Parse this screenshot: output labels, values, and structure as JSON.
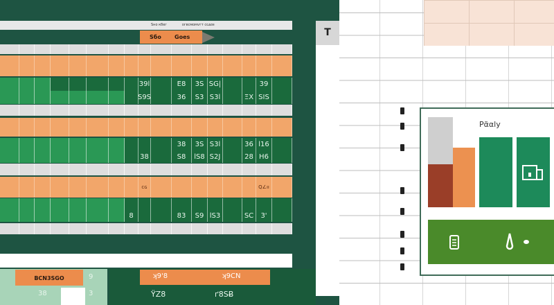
{
  "header": {
    "bar_labels": [
      "Sнo кбег",
      "ᴅгвсмомѵгт ᴄɢᴀᴅᴇ"
    ],
    "tab_labels": [
      "Sбo",
      "Goes"
    ],
    "side_button": "T"
  },
  "colors": {
    "panel": "#1e5442",
    "orange": "#f2a66a",
    "green": "#1a6a3c",
    "light_green": "#2a9855",
    "accent": "#ec8c4c"
  },
  "grid": {
    "rows": [
      {
        "type": "gray"
      },
      {
        "type": "orange"
      },
      {
        "type": "green",
        "values": {
          "9": "39l",
          "11": "E8",
          "12": "3S",
          "13": "SG|",
          "16": "39"
        }
      },
      {
        "type": "green",
        "values": {
          "9": "S9S",
          "11": "36",
          "12": "S3",
          "13": "S3l",
          "15": "ΞX",
          "16": "SIS"
        }
      },
      {
        "type": "gray"
      },
      {
        "type": "orange"
      },
      {
        "type": "green",
        "values": {
          "11": "38",
          "12": "3S",
          "13": "S3l",
          "15": "36",
          "16": "l16"
        }
      },
      {
        "type": "green",
        "values": {
          "9": "38",
          "11": "S8",
          "12": "lS8",
          "13": "S2J",
          "15": "28",
          "16": "H6"
        }
      },
      {
        "type": "gray"
      },
      {
        "type": "orange",
        "values": {
          "9": "ᴄɢ",
          "16": "Q∠ıı"
        }
      },
      {
        "type": "green"
      },
      {
        "type": "green",
        "values": {
          "8": "8",
          "11": "83",
          "12": "S9",
          "13": "lS3",
          "15": "SC",
          "16": "3'"
        }
      },
      {
        "type": "gray"
      }
    ]
  },
  "bottom": {
    "left_label": "BCN3SGO",
    "left_values": [
      "9",
      "38",
      "3"
    ],
    "bar_labels": [
      "ʞ9'8",
      "ʞ9CN"
    ],
    "values": [
      "ŸZ8",
      "ґ8SɃ"
    ]
  },
  "chart_card": {
    "title": "Ρᾶαly",
    "icons": [
      "document-chart-icon",
      "clipboard-icon",
      "pin-icon"
    ]
  }
}
